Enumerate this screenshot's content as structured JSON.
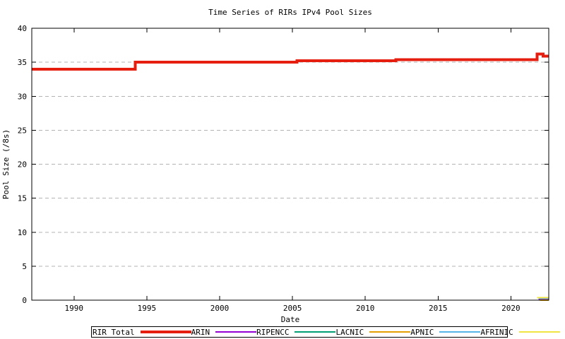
{
  "title": "Time Series of RIRs IPv4 Pool Sizes",
  "chart_data": {
    "type": "line",
    "title": "Time Series of RIRs IPv4 Pool Sizes",
    "xlabel": "Date",
    "ylabel": "Pool Size (/8s)",
    "xlim": [
      1987.1,
      2022.6
    ],
    "ylim": [
      0,
      40
    ],
    "xticks": [
      1990,
      1995,
      2000,
      2005,
      2010,
      2015,
      2020
    ],
    "yticks": [
      0,
      5,
      10,
      15,
      20,
      25,
      30,
      35,
      40
    ],
    "grid": "horizontal-dashed",
    "grid_color": "#b3b3b3",
    "legend_position": "bottom-outside",
    "series": [
      {
        "name": "RIR Total",
        "color": "#e51e10",
        "width": 4,
        "points": [
          [
            1987.1,
            34
          ],
          [
            1994.2,
            34
          ],
          [
            1994.2,
            35.0
          ],
          [
            2005.3,
            35.0
          ],
          [
            2005.3,
            35.2
          ],
          [
            2012.1,
            35.2
          ],
          [
            2012.1,
            35.4
          ],
          [
            2021.8,
            35.4
          ],
          [
            2021.8,
            36.2
          ],
          [
            2022.2,
            36.2
          ],
          [
            2022.2,
            35.9
          ],
          [
            2022.6,
            35.9
          ]
        ]
      },
      {
        "name": "ARIN",
        "color": "#9400d3",
        "width": 2,
        "points": [
          [
            2021.9,
            0.1
          ],
          [
            2022.6,
            0.1
          ]
        ]
      },
      {
        "name": "RIPENCC",
        "color": "#009e73",
        "width": 2,
        "points": [
          [
            2022.0,
            0.02
          ],
          [
            2022.6,
            0.02
          ]
        ]
      },
      {
        "name": "LACNIC",
        "color": "#e69f00",
        "width": 2,
        "points": [
          [
            2022.0,
            0.02
          ],
          [
            2022.6,
            0.02
          ]
        ]
      },
      {
        "name": "APNIC",
        "color": "#56b4e9",
        "width": 2,
        "points": [
          [
            2021.9,
            0.25
          ],
          [
            2022.6,
            0.25
          ]
        ]
      },
      {
        "name": "AFRINIC",
        "color": "#f0e442",
        "width": 2,
        "points": [
          [
            2021.8,
            0.38
          ],
          [
            2022.6,
            0.38
          ]
        ]
      }
    ]
  },
  "legend": {
    "entries": [
      {
        "label": "RIR Total",
        "color": "#e51e10",
        "thick": true
      },
      {
        "label": "ARIN",
        "color": "#9400d3",
        "thick": false
      },
      {
        "label": "RIPENCC",
        "color": "#009e73",
        "thick": false
      },
      {
        "label": "LACNIC",
        "color": "#e69f00",
        "thick": false
      },
      {
        "label": "APNIC",
        "color": "#56b4e9",
        "thick": false
      },
      {
        "label": "AFRINIC",
        "color": "#f0e442",
        "thick": false
      }
    ]
  }
}
